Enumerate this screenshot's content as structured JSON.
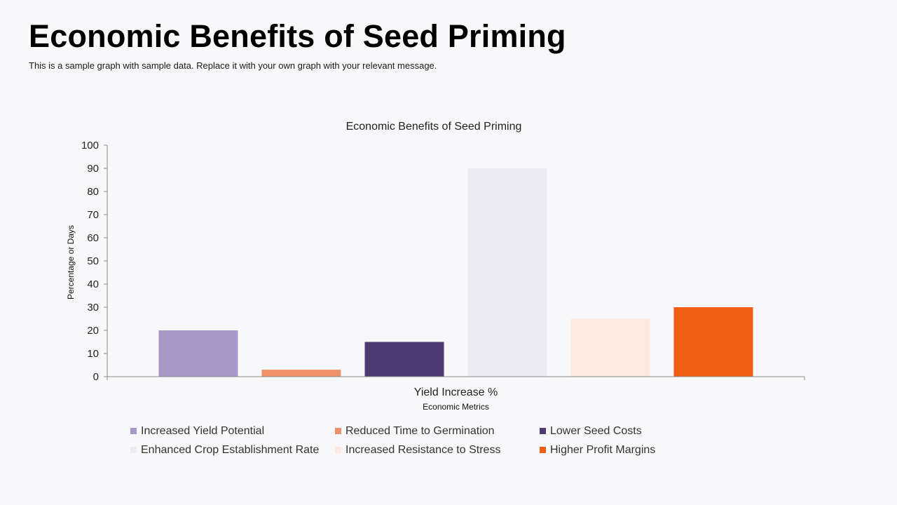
{
  "header": {
    "title": "Economic Benefits of Seed Priming",
    "subtitle": "This is a sample graph with sample data. Replace it with your own graph with your relevant message."
  },
  "chart_data": {
    "type": "bar",
    "title": "Economic Benefits of Seed Priming",
    "categories": [
      "Yield Increase %"
    ],
    "xlabel": "Economic Metrics",
    "ylabel": "Percentage or Days",
    "ylim": [
      0,
      100
    ],
    "yticks": [
      0,
      10,
      20,
      30,
      40,
      50,
      60,
      70,
      80,
      90,
      100
    ],
    "grid": false,
    "legend_position": "bottom",
    "series": [
      {
        "name": "Increased Yield Potential",
        "values": [
          20
        ],
        "color": "#a898c8"
      },
      {
        "name": "Reduced Time to Germination",
        "values": [
          3
        ],
        "color": "#ee9068"
      },
      {
        "name": "Lower Seed Costs",
        "values": [
          15
        ],
        "color": "#4f3a72"
      },
      {
        "name": "Enhanced Crop Establishment Rate",
        "values": [
          90
        ],
        "color": "#eceaf3"
      },
      {
        "name": "Increased Resistance to Stress",
        "values": [
          25
        ],
        "color": "#fceae0"
      },
      {
        "name": "Higher Profit Margins",
        "values": [
          30
        ],
        "color": "#f05e16"
      }
    ]
  }
}
